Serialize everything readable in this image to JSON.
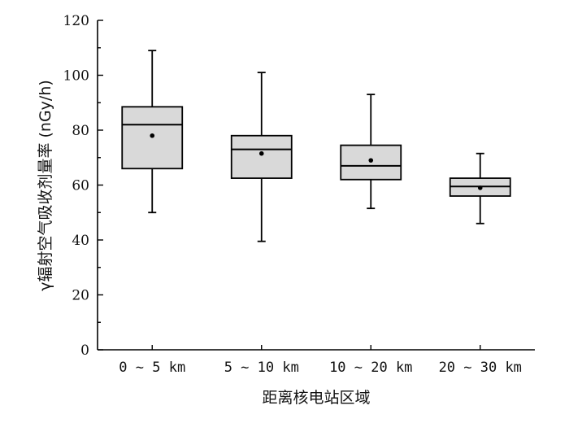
{
  "chart_data": {
    "type": "box",
    "xlabel": "距离核电站区域",
    "ylabel": "γ辐射空气吸收剂量率 (nGy/h)",
    "ylim": [
      0,
      120
    ],
    "yticks": [
      0,
      20,
      40,
      60,
      80,
      100,
      120
    ],
    "grid": false,
    "box_fill": "#d9d9d9",
    "categories": [
      "0 ~ 5 km",
      "5 ~ 10 km",
      "10 ~ 20 km",
      "20 ~ 30 km"
    ],
    "boxes": [
      {
        "category": "0 ~ 5 km",
        "min": 50,
        "q1": 66,
        "median": 82,
        "q3": 88.5,
        "max": 109,
        "mean": 78
      },
      {
        "category": "5 ~ 10 km",
        "min": 39.5,
        "q1": 62.5,
        "median": 73,
        "q3": 78,
        "max": 101,
        "mean": 71.5
      },
      {
        "category": "10 ~ 20 km",
        "min": 51.5,
        "q1": 62,
        "median": 67,
        "q3": 74.5,
        "max": 93,
        "mean": 69
      },
      {
        "category": "20 ~ 30 km",
        "min": 46,
        "q1": 56,
        "median": 59.5,
        "q3": 62.5,
        "max": 71.5,
        "mean": 59
      }
    ]
  }
}
